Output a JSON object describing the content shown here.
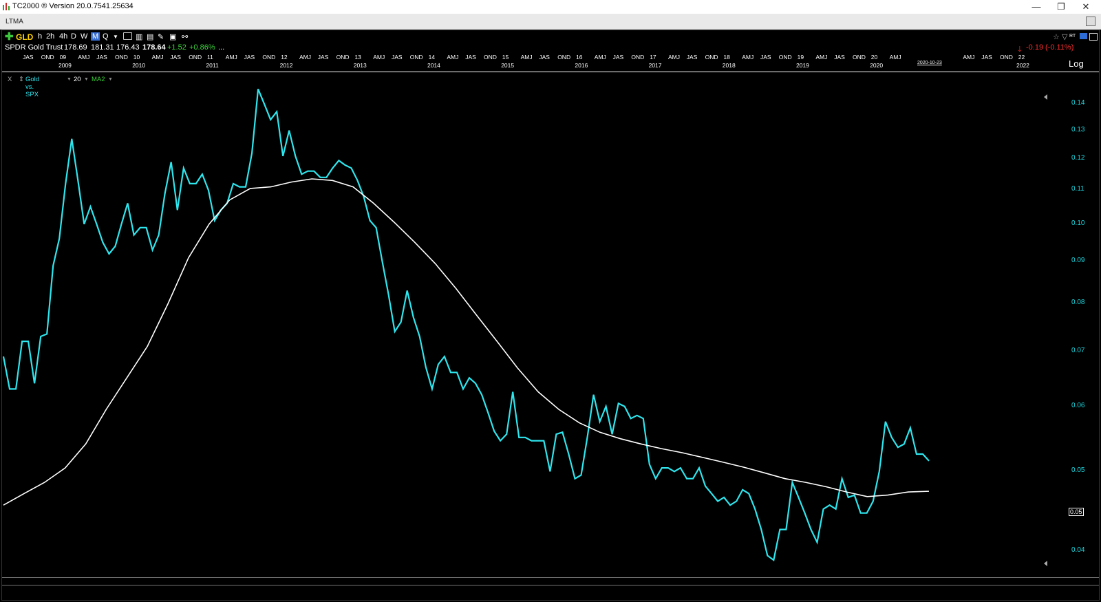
{
  "app": {
    "title": "TC2000 ® Version 20.0.7541.25634",
    "window_buttons": [
      "—",
      "❐",
      "✕"
    ]
  },
  "tab": {
    "name": "LTMA"
  },
  "toolbar": {
    "symbol": "GLD",
    "timeframes": [
      "h",
      "2h",
      "4h",
      "D",
      "W",
      "M",
      "Q"
    ],
    "active_timeframe": "M",
    "right_icons": [
      "☆",
      "▽",
      "RT"
    ]
  },
  "quote": {
    "name": "SPDR Gold Trust",
    "last": "178.69",
    "high": "181.31",
    "low": "176.43",
    "close": "178.64",
    "change": "+1.52",
    "change_pct": "+0.86%",
    "more": "...",
    "after_change": "-0.19",
    "after_change_pct": "(-0.11%)"
  },
  "timescale": {
    "top_labels": [
      "JAS",
      "OND",
      "09",
      "AMJ",
      "JAS",
      "OND",
      "10",
      "AMJ",
      "JAS",
      "OND",
      "11",
      "AMJ",
      "JAS",
      "OND",
      "12",
      "AMJ",
      "JAS",
      "OND",
      "13",
      "AMJ",
      "JAS",
      "OND",
      "14",
      "AMJ",
      "JAS",
      "OND",
      "15",
      "AMJ",
      "JAS",
      "OND",
      "16",
      "AMJ",
      "JAS",
      "OND",
      "17",
      "AMJ",
      "JAS",
      "OND",
      "18",
      "AMJ",
      "JAS",
      "OND",
      "19",
      "AMJ",
      "JAS",
      "OND",
      "20",
      "AMJ",
      "AMJ",
      "JAS",
      "OND",
      "22"
    ],
    "year_labels": [
      "2009",
      "2010",
      "2011",
      "2012",
      "2013",
      "2014",
      "2015",
      "2016",
      "2017",
      "2018",
      "2019",
      "2020",
      "2022"
    ],
    "cursor_date": "2020-10-23",
    "scale_mode": "Log"
  },
  "indicator": {
    "close_x": "X",
    "name": "Gold vs. SPX",
    "period": "20",
    "ma_label": "MA2"
  },
  "chart_data": {
    "type": "line",
    "title": "",
    "xlabel": "",
    "ylabel": "",
    "ylim": [
      0.0375,
      0.147
    ],
    "y_scale": "log",
    "y_ticks": [
      "0.14",
      "0.13",
      "0.12",
      "0.11",
      "0.10",
      "0.09",
      "0.08",
      "0.07",
      "0.06",
      "0.05",
      "0.04"
    ],
    "current_value_label": "0.05",
    "colors": {
      "ratio": "#2ee6ee",
      "ma": "#ffffff",
      "axis": "#1ed8e0"
    },
    "series": [
      {
        "values": [
          0.069,
          0.063,
          0.063,
          0.072,
          0.072,
          0.064,
          0.073,
          0.0735,
          0.089,
          0.096,
          0.112,
          0.127,
          0.113,
          0.1,
          0.105,
          0.1,
          0.095,
          0.092,
          0.094,
          0.1,
          0.106,
          0.097,
          0.099,
          0.099,
          0.093,
          0.097,
          0.109,
          0.119,
          0.104,
          0.117,
          0.112,
          0.112,
          0.115,
          0.11,
          0.101,
          0.104,
          0.106,
          0.112,
          0.111,
          0.111,
          0.122,
          0.146,
          0.14,
          0.134,
          0.137,
          0.121,
          0.13,
          0.121,
          0.115,
          0.116,
          0.116,
          0.114,
          0.114,
          0.117,
          0.1195,
          0.118,
          0.117,
          0.113,
          0.108,
          0.101,
          0.099,
          0.09,
          0.082,
          0.074,
          0.076,
          0.083,
          0.077,
          0.073,
          0.067,
          0.063,
          0.0675,
          0.069,
          0.066,
          0.066,
          0.063,
          0.065,
          0.064,
          0.062,
          0.059,
          0.056,
          0.0545,
          0.0555,
          0.0625,
          0.055,
          0.055,
          0.0545,
          0.0545,
          0.0545,
          0.05,
          0.0555,
          0.0558,
          0.0525,
          0.049,
          0.0495,
          0.055,
          0.062,
          0.0575,
          0.06,
          0.0555,
          0.0605,
          0.06,
          0.058,
          0.0585,
          0.058,
          0.051,
          0.049,
          0.0505,
          0.0505,
          0.05,
          0.0505,
          0.049,
          0.049,
          0.0505,
          0.048,
          0.047,
          0.046,
          0.0465,
          0.0455,
          0.046,
          0.0475,
          0.047,
          0.045,
          0.0425,
          0.0395,
          0.039,
          0.0425,
          0.0425,
          0.0485,
          0.0465,
          0.0445,
          0.0425,
          0.041,
          0.045,
          0.0455,
          0.045,
          0.049,
          0.0465,
          0.0468,
          0.0445,
          0.0445,
          0.046,
          0.05,
          0.0575,
          0.055,
          0.0535,
          0.054,
          0.0565,
          0.0525,
          0.0525,
          0.0515
        ]
      },
      {
        "name": "MA2",
        "values": [
          0.0455,
          0.047,
          0.0485,
          0.0505,
          0.054,
          0.0595,
          0.065,
          0.071,
          0.08,
          0.091,
          0.1,
          0.107,
          0.1105,
          0.111,
          0.1125,
          0.1135,
          0.113,
          0.111,
          0.106,
          0.1005,
          0.095,
          0.0895,
          0.0835,
          0.0775,
          0.072,
          0.0668,
          0.0625,
          0.0595,
          0.0573,
          0.0558,
          0.0548,
          0.054,
          0.0533,
          0.0527,
          0.052,
          0.0513,
          0.0506,
          0.0498,
          0.049,
          0.0485,
          0.0479,
          0.0472,
          0.0466,
          0.0468,
          0.0472,
          0.0473
        ]
      }
    ]
  }
}
